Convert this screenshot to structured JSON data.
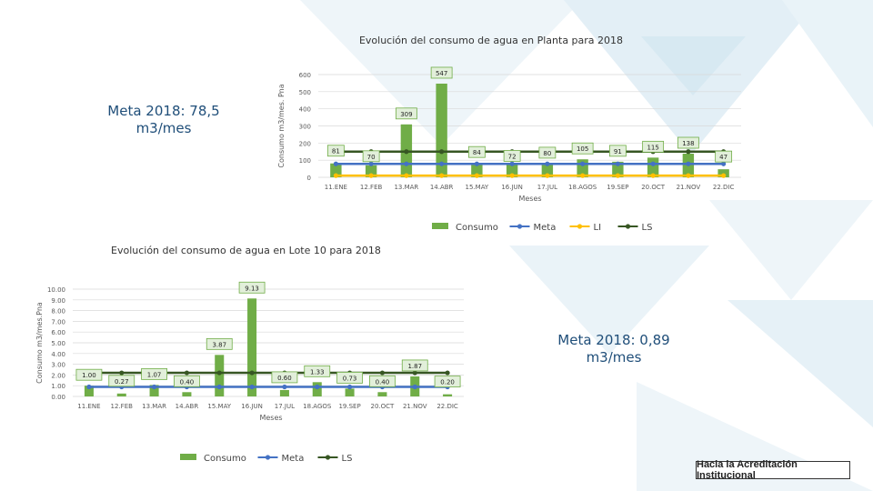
{
  "goal_plant": "Meta 2018: 78,5 m3/mes",
  "goal_lot": "Meta 2018: 0,89 m3/mes",
  "badge": "Hacia la Acreditación Institucional",
  "colors": {
    "consumo": "#70ad47",
    "meta": "#4472c4",
    "li": "#ffc000",
    "ls": "#375623",
    "title": "#333333"
  },
  "chart_data": [
    {
      "type": "bar",
      "title": "Evolución del consumo de agua en Planta para 2018",
      "xlabel": "Meses",
      "ylabel": "Consumo m3/mes. Pna",
      "ylim": [
        0,
        600
      ],
      "yticks": [
        "0",
        "100",
        "200",
        "300",
        "400",
        "500",
        "600"
      ],
      "categories": [
        "11.ENE",
        "12.FEB",
        "13.MAR",
        "14.ABR",
        "15.MAY",
        "16.JUN",
        "17.JUL",
        "18.AGOS",
        "19.SEP",
        "20.OCT",
        "21.NOV",
        "22.DIC"
      ],
      "series": [
        {
          "name": "Consumo",
          "type": "bar",
          "values": [
            81,
            70,
            309,
            547,
            84,
            72,
            80,
            105,
            91,
            115,
            138,
            47
          ],
          "labels": [
            "81",
            "70",
            "309",
            "547",
            "84",
            "72",
            "80",
            "105",
            "91",
            "115",
            "138",
            "47"
          ]
        },
        {
          "name": "Meta",
          "type": "line",
          "values": [
            78.5,
            78.5,
            78.5,
            78.5,
            78.5,
            78.5,
            78.5,
            78.5,
            78.5,
            78.5,
            78.5,
            78.5
          ]
        },
        {
          "name": "LI",
          "type": "line",
          "values": [
            10,
            10,
            10,
            10,
            10,
            10,
            10,
            10,
            10,
            10,
            10,
            10
          ]
        },
        {
          "name": "LS",
          "type": "line",
          "values": [
            150,
            150,
            150,
            150,
            150,
            150,
            150,
            150,
            150,
            150,
            150,
            150
          ]
        }
      ],
      "legend": [
        "Consumo",
        "Meta",
        "LI",
        "LS"
      ],
      "legend_position": "bottom-right",
      "grid": true
    },
    {
      "type": "bar",
      "title": "Evolución del consumo de agua en Lote 10 para 2018",
      "xlabel": "Meses",
      "ylabel": "Consumo m3/mes.Pna",
      "ylim": [
        0,
        10
      ],
      "yticks": [
        "0.00",
        "1.00",
        "2.00",
        "3.00",
        "4.00",
        "5.00",
        "6.00",
        "7.00",
        "8.00",
        "9.00",
        "10.00"
      ],
      "categories": [
        "11.ENE",
        "12.FEB",
        "13.MAR",
        "14.ABR",
        "15.MAY",
        "16.JUN",
        "17.JUL",
        "18.AGOS",
        "19.SEP",
        "20.OCT",
        "21.NOV",
        "22.DIC"
      ],
      "series": [
        {
          "name": "Consumo",
          "type": "bar",
          "values": [
            1.0,
            0.27,
            1.07,
            0.4,
            3.87,
            9.13,
            0.6,
            1.33,
            0.73,
            0.4,
            1.87,
            0.2
          ],
          "labels": [
            "1.00",
            "0.27",
            "1.07",
            "0.40",
            "3.87",
            "9.13",
            "0.60",
            "1.33",
            "0.73",
            "0.40",
            "1.87",
            "0.20"
          ]
        },
        {
          "name": "Meta",
          "type": "line",
          "values": [
            0.89,
            0.89,
            0.89,
            0.89,
            0.89,
            0.89,
            0.89,
            0.89,
            0.89,
            0.89,
            0.89,
            0.89
          ]
        },
        {
          "name": "LS",
          "type": "line",
          "values": [
            2.2,
            2.2,
            2.2,
            2.2,
            2.2,
            2.2,
            2.2,
            2.2,
            2.2,
            2.2,
            2.2,
            2.2
          ]
        }
      ],
      "legend": [
        "Consumo",
        "Meta",
        "LS"
      ],
      "legend_position": "bottom",
      "grid": true
    }
  ]
}
